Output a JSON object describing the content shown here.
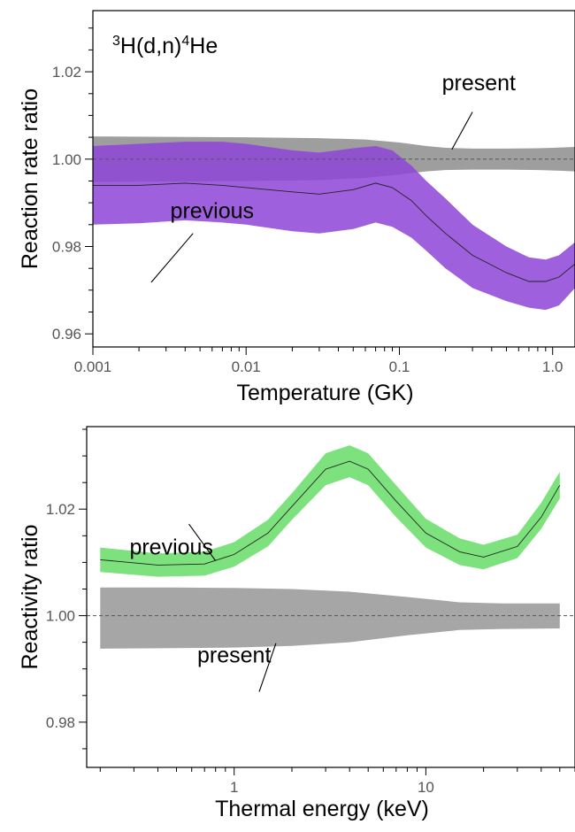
{
  "chart_data": [
    {
      "type": "area",
      "title_parts": {
        "pre": "3",
        "a": "H(d,n)",
        "sup": "4",
        "b": "He"
      },
      "xlabel": "Temperature (GK)",
      "ylabel": "Reaction rate ratio",
      "xscale": "log",
      "xlim": [
        0.001,
        1.4
      ],
      "ylim": [
        0.957,
        1.034
      ],
      "x_ticks": [
        {
          "value": 0.001,
          "label": "0.001"
        },
        {
          "value": 0.01,
          "label": "0.01"
        },
        {
          "value": 0.1,
          "label": "0.1"
        },
        {
          "value": 1.0,
          "label": "1.0"
        }
      ],
      "y_ticks": [
        {
          "value": 0.96,
          "label": "0.96"
        },
        {
          "value": 0.98,
          "label": "0.98"
        },
        {
          "value": 1.0,
          "label": "1.00"
        },
        {
          "value": 1.02,
          "label": "1.02"
        }
      ],
      "reference_line": 1.0,
      "series": [
        {
          "name": "present",
          "color": "#9e9e9e",
          "x": [
            0.001,
            0.003,
            0.01,
            0.03,
            0.06,
            0.1,
            0.15,
            0.2,
            0.3,
            0.5,
            0.8,
            1.0,
            1.4
          ],
          "center": [
            1.0,
            1.0,
            1.0,
            1.0,
            1.0,
            1.0,
            1.0,
            1.0,
            1.0,
            1.0,
            1.0,
            1.0,
            1.0
          ],
          "upper": [
            1.0052,
            1.0051,
            1.005,
            1.0048,
            1.0045,
            1.0038,
            1.003,
            1.0026,
            1.0024,
            1.0024,
            1.0025,
            1.0026,
            1.0028
          ],
          "lower": [
            0.9948,
            0.9949,
            0.995,
            0.9952,
            0.9957,
            0.9965,
            0.9972,
            0.9975,
            0.9976,
            0.9976,
            0.9975,
            0.9974,
            0.9972
          ]
        },
        {
          "name": "previous",
          "color": "#8e44d8",
          "x": [
            0.001,
            0.002,
            0.004,
            0.007,
            0.01,
            0.02,
            0.03,
            0.05,
            0.07,
            0.09,
            0.12,
            0.15,
            0.2,
            0.3,
            0.5,
            0.7,
            0.9,
            1.1,
            1.4
          ],
          "center": [
            0.994,
            0.994,
            0.9945,
            0.994,
            0.9935,
            0.9925,
            0.992,
            0.993,
            0.9945,
            0.9935,
            0.9905,
            0.987,
            0.983,
            0.978,
            0.974,
            0.972,
            0.972,
            0.973,
            0.976
          ],
          "upper": [
            1.003,
            1.0035,
            1.004,
            1.004,
            1.0035,
            1.002,
            1.0015,
            1.0025,
            1.003,
            1.002,
            0.9985,
            0.995,
            0.991,
            0.985,
            0.98,
            0.9775,
            0.977,
            0.978,
            0.981
          ],
          "lower": [
            0.985,
            0.9853,
            0.986,
            0.9855,
            0.985,
            0.9835,
            0.983,
            0.984,
            0.9855,
            0.9845,
            0.982,
            0.979,
            0.975,
            0.9705,
            0.9675,
            0.966,
            0.9655,
            0.9665,
            0.9705
          ]
        }
      ],
      "annotations": [
        {
          "text": "present",
          "text_pos": [
            0.33,
            1.0158
          ],
          "line_from": [
            0.3,
            1.0108
          ],
          "line_to": [
            0.22,
            1.0022
          ]
        },
        {
          "text": "previous",
          "text_pos": [
            0.006,
            0.9865
          ],
          "line_from": [
            0.0045,
            0.983
          ],
          "line_to": [
            0.0024,
            0.9718
          ]
        }
      ]
    },
    {
      "type": "area",
      "xlabel": "Thermal energy (keV)",
      "ylabel": "Reactivity ratio",
      "xscale": "log",
      "xlim": [
        0.17,
        60
      ],
      "ylim": [
        0.9715,
        1.0355
      ],
      "x_ticks": [
        {
          "value": 1,
          "label": "1"
        },
        {
          "value": 10,
          "label": "10"
        }
      ],
      "y_ticks": [
        {
          "value": 0.98,
          "label": "0.98"
        },
        {
          "value": 1.0,
          "label": "1.00"
        },
        {
          "value": 1.02,
          "label": "1.02"
        }
      ],
      "reference_line": 1.0,
      "series": [
        {
          "name": "previous",
          "color": "#66dd66",
          "x": [
            0.2,
            0.4,
            0.7,
            1.0,
            1.5,
            2.0,
            3.0,
            4.0,
            5.0,
            7.0,
            10.0,
            15.0,
            20.0,
            30.0,
            40.0,
            50.0
          ],
          "center": [
            1.0105,
            1.0095,
            1.0097,
            1.0115,
            1.0155,
            1.0205,
            1.0275,
            1.029,
            1.0275,
            1.0215,
            1.0155,
            1.012,
            1.011,
            1.013,
            1.0185,
            1.0245
          ],
          "upper": [
            1.0128,
            1.0117,
            1.012,
            1.0138,
            1.018,
            1.023,
            1.0305,
            1.032,
            1.0305,
            1.0245,
            1.0182,
            1.0145,
            1.0133,
            1.0152,
            1.0212,
            1.027
          ],
          "lower": [
            1.0082,
            1.0073,
            1.0075,
            1.0092,
            1.013,
            1.018,
            1.0245,
            1.026,
            1.0245,
            1.0185,
            1.0128,
            1.0095,
            1.0087,
            1.0108,
            1.0163,
            1.022
          ]
        },
        {
          "name": "present",
          "color": "#a6a6a6",
          "x": [
            0.2,
            0.5,
            1.0,
            2.0,
            4.0,
            8.0,
            15.0,
            25.0,
            50.0
          ],
          "center": [
            1.0,
            1.0,
            1.0,
            1.0,
            1.0,
            1.0,
            1.0,
            1.0,
            1.0
          ],
          "upper": [
            1.0053,
            1.0053,
            1.0052,
            1.005,
            1.0045,
            1.0035,
            1.0025,
            1.0023,
            1.0023
          ],
          "lower": [
            0.9938,
            0.9939,
            0.994,
            0.9943,
            0.995,
            0.9963,
            0.9973,
            0.9975,
            0.9976
          ]
        }
      ],
      "annotations": [
        {
          "text": "previous",
          "text_pos": [
            0.47,
            1.0115
          ],
          "line_from": [
            0.58,
            1.0172
          ],
          "line_to": [
            0.8,
            1.0103
          ]
        },
        {
          "text": "present",
          "text_pos": [
            1.0,
            0.9912
          ],
          "line_from": [
            1.35,
            0.9857
          ],
          "line_to": [
            1.65,
            0.9948
          ]
        }
      ]
    }
  ]
}
